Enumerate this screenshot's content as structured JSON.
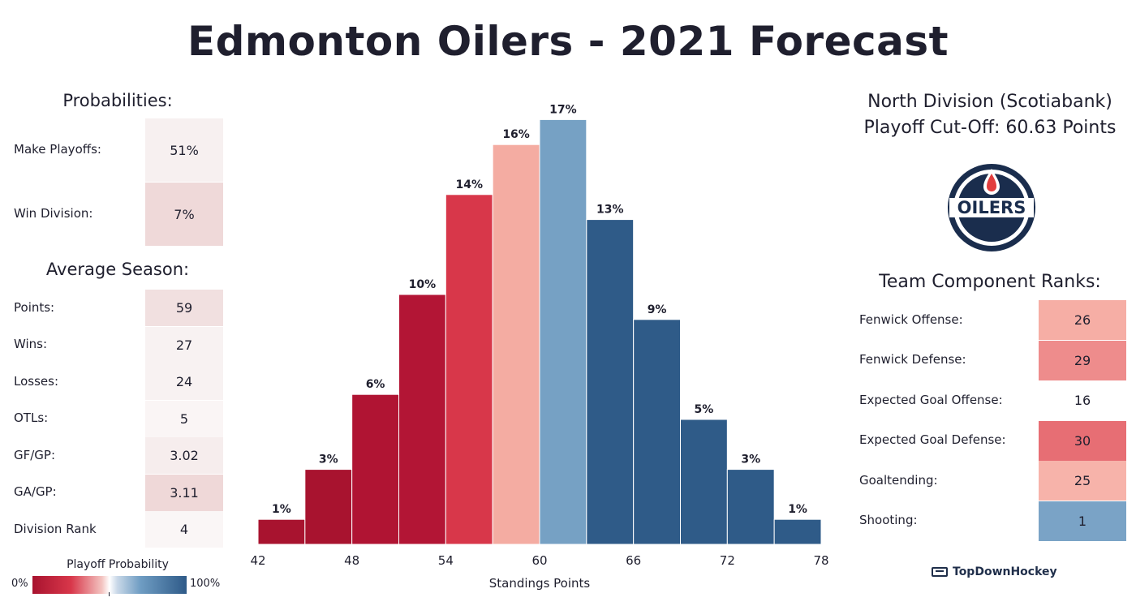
{
  "title": "Edmonton Oilers - 2021 Forecast",
  "probabilities": {
    "heading": "Probabilities:",
    "rows": [
      {
        "label": "Make Playoffs:",
        "value": "51%",
        "color": "#f7f0f0"
      },
      {
        "label": "Win Division:",
        "value": "7%",
        "color": "#efd9d9"
      }
    ]
  },
  "average_season": {
    "heading": "Average Season:",
    "rows": [
      {
        "label": "Points:",
        "value": "59",
        "color": "#f1e0e0"
      },
      {
        "label": "Wins:",
        "value": "27",
        "color": "#f8f2f2"
      },
      {
        "label": "Losses:",
        "value": "24",
        "color": "#f8f2f2"
      },
      {
        "label": "OTLs:",
        "value": "5",
        "color": "#faf5f5"
      },
      {
        "label": "GF/GP:",
        "value": "3.02",
        "color": "#f6eded"
      },
      {
        "label": "GA/GP:",
        "value": "3.11",
        "color": "#efd8d8"
      },
      {
        "label": "Division Rank",
        "value": "4",
        "color": "#faf6f6"
      }
    ]
  },
  "division": {
    "name": "North Division (Scotiabank)",
    "cutoff": "Playoff Cut-Off: 60.63 Points"
  },
  "logo": {
    "text": "OILERS",
    "icon": "oilers-logo-icon",
    "navy": "#1a2d4d",
    "orange_drop": "#e23d3d"
  },
  "component_ranks": {
    "heading": "Team Component Ranks:",
    "rows": [
      {
        "label": "Fenwick Offense:",
        "value": "26",
        "color": "#f6aea5"
      },
      {
        "label": "Fenwick Defense:",
        "value": "29",
        "color": "#ee8c8c"
      },
      {
        "label": "Expected Goal Offense:",
        "value": "16",
        "color": "#ffffff"
      },
      {
        "label": "Expected Goal Defense:",
        "value": "30",
        "color": "#e76e74"
      },
      {
        "label": "Goaltending:",
        "value": "25",
        "color": "#f7b3aa"
      },
      {
        "label": "Shooting:",
        "value": "1",
        "color": "#7aa3c6"
      }
    ]
  },
  "legend": {
    "title": "Playoff Probability",
    "min_label": "0%",
    "max_label": "100%"
  },
  "brand": "TopDownHockey",
  "chart_data": {
    "type": "bar",
    "xlabel": "Standings Points",
    "x_ticks": [
      "42",
      "48",
      "54",
      "60",
      "66",
      "72",
      "78"
    ],
    "xlim": [
      42,
      78
    ],
    "bins": [
      {
        "start": 42,
        "end": 45,
        "value": 1,
        "label": "1%",
        "color": "#a8132f"
      },
      {
        "start": 45,
        "end": 48,
        "value": 3,
        "label": "3%",
        "color": "#a8132f"
      },
      {
        "start": 48,
        "end": 51,
        "value": 6,
        "label": "6%",
        "color": "#b01433"
      },
      {
        "start": 51,
        "end": 54,
        "value": 10,
        "label": "10%",
        "color": "#b31535"
      },
      {
        "start": 54,
        "end": 57,
        "value": 14,
        "label": "14%",
        "color": "#d8374a"
      },
      {
        "start": 57,
        "end": 60,
        "value": 16,
        "label": "16%",
        "color": "#f4aca2"
      },
      {
        "start": 60,
        "end": 63,
        "value": 17,
        "label": "17%",
        "color": "#76a1c4"
      },
      {
        "start": 63,
        "end": 66,
        "value": 13,
        "label": "13%",
        "color": "#2f5b88"
      },
      {
        "start": 66,
        "end": 69,
        "value": 9,
        "label": "9%",
        "color": "#2f5b88"
      },
      {
        "start": 69,
        "end": 72,
        "value": 5,
        "label": "5%",
        "color": "#2f5b88"
      },
      {
        "start": 72,
        "end": 75,
        "value": 3,
        "label": "3%",
        "color": "#2f5b88"
      },
      {
        "start": 75,
        "end": 78,
        "value": 1,
        "label": "1%",
        "color": "#2f5b88"
      }
    ]
  }
}
